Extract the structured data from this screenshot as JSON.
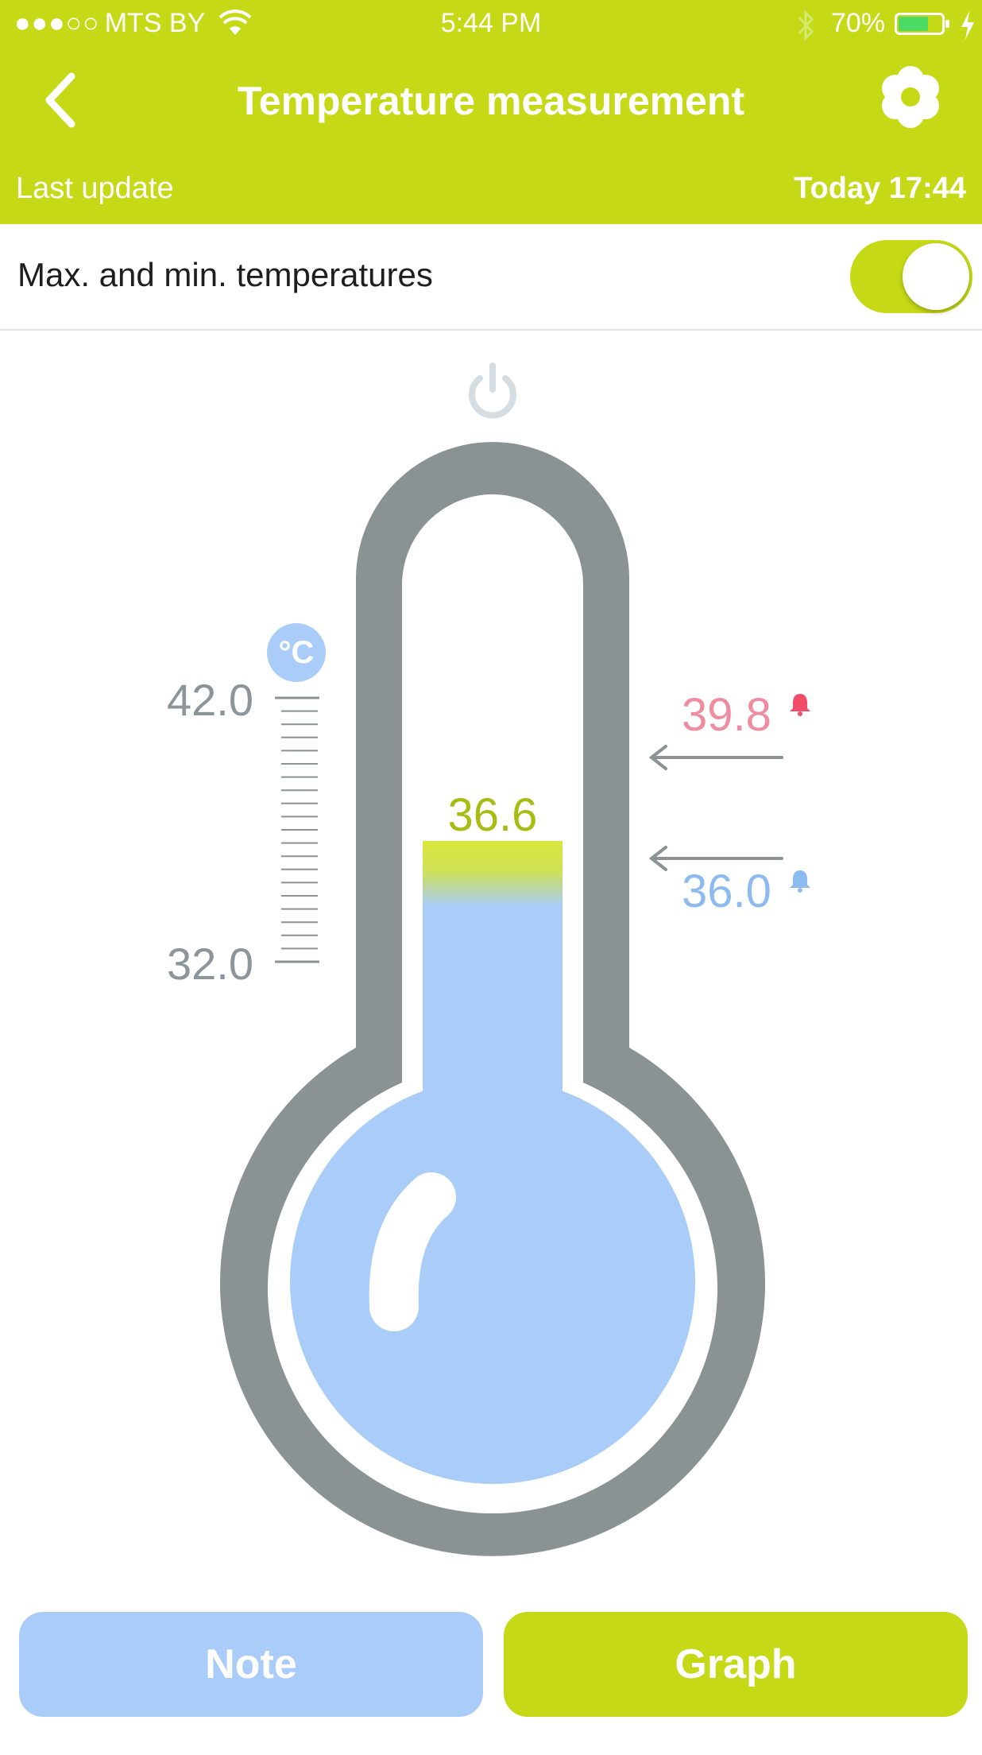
{
  "status_bar": {
    "signal": "●●●○○",
    "carrier": "MTS BY",
    "time": "5:44 PM",
    "battery_percent": "70%",
    "battery_level": 0.7
  },
  "nav": {
    "title": "Temperature measurement",
    "back_icon": "chevron-left-icon",
    "settings_icon": "gear-icon"
  },
  "last_update": {
    "label": "Last update",
    "value": "Today 17:44"
  },
  "max_min_toggle": {
    "label": "Max. and min. temperatures",
    "on": true
  },
  "thermometer": {
    "unit": "°C",
    "scale_max": "42.0",
    "scale_min": "32.0",
    "current": "36.6",
    "max_alarm": "39.8",
    "min_alarm": "36.0"
  },
  "buttons": {
    "note": "Note",
    "graph": "Graph"
  },
  "colors": {
    "accent": "#c5d916",
    "mercury": "#a9cdf8",
    "outline": "#8a9294",
    "max": "#f08ca0",
    "min": "#8dbbef"
  }
}
